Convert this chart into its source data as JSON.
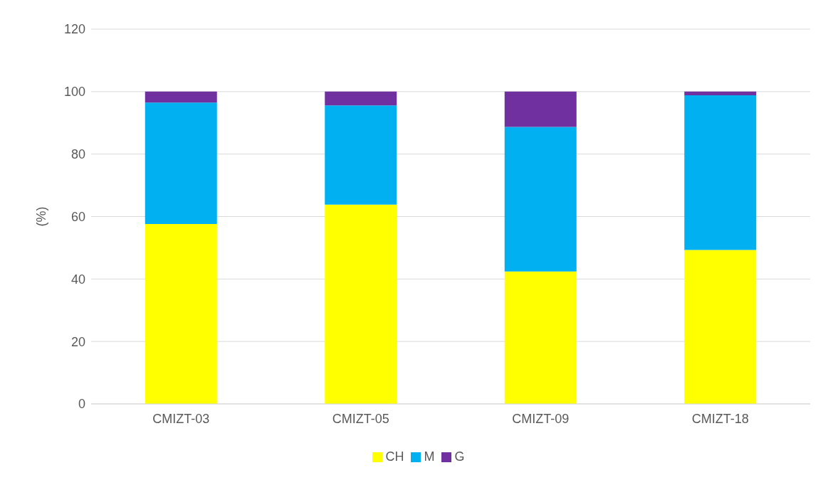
{
  "chart_data": {
    "type": "bar",
    "stacked": true,
    "ylabel": "(%)",
    "categories": [
      "CMIZT-03",
      "CMIZT-05",
      "CMIZT-09",
      "CMIZT-18"
    ],
    "series": [
      {
        "name": "CH",
        "color": "#ffff00",
        "values": [
          57.6,
          63.8,
          42.4,
          49.3
        ]
      },
      {
        "name": "M",
        "color": "#00b0f0",
        "values": [
          38.9,
          31.8,
          46.3,
          49.5
        ]
      },
      {
        "name": "G",
        "color": "#7030a0",
        "values": [
          3.5,
          4.4,
          11.3,
          1.2
        ]
      }
    ],
    "ylim": [
      0,
      120
    ],
    "yticks": [
      0,
      20,
      40,
      60,
      80,
      100,
      120
    ],
    "grid": "y",
    "legend": "bottom"
  }
}
